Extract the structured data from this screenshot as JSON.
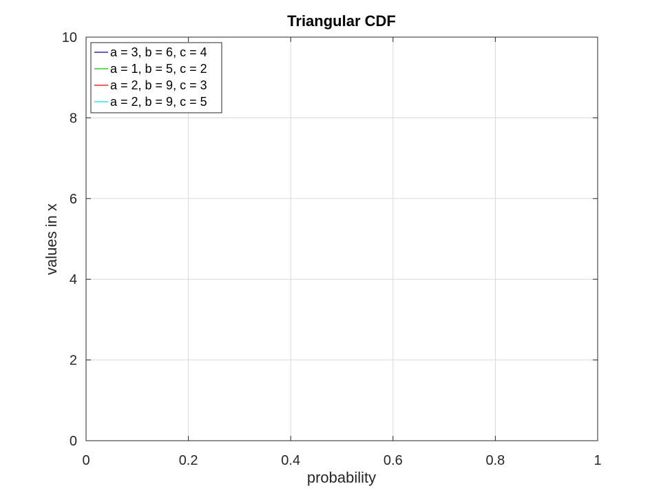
{
  "chart_data": {
    "type": "line",
    "title": "Triangular CDF",
    "xlabel": "probability",
    "ylabel": "values in x",
    "xlim": [
      0,
      1
    ],
    "ylim": [
      0,
      10
    ],
    "xticks": [
      0,
      0.2,
      0.4,
      0.6,
      0.8,
      1
    ],
    "xtick_labels": [
      "0",
      "0.2",
      "0.4",
      "0.6",
      "0.8",
      "1"
    ],
    "yticks": [
      0,
      2,
      4,
      6,
      8,
      10
    ],
    "ytick_labels": [
      "0",
      "2",
      "4",
      "6",
      "8",
      "10"
    ],
    "grid": true,
    "legend_position": "top-left",
    "series": [
      {
        "name": "a = 3, b = 6, c = 4",
        "color": "#00008f",
        "x": [],
        "y": []
      },
      {
        "name": "a = 1, b = 5, c = 2",
        "color": "#00c000",
        "x": [],
        "y": []
      },
      {
        "name": "a = 2, b = 9, c = 3",
        "color": "#e00000",
        "x": [],
        "y": []
      },
      {
        "name": "a = 2, b = 9, c = 5",
        "color": "#00e0e0",
        "x": [],
        "y": []
      }
    ]
  }
}
